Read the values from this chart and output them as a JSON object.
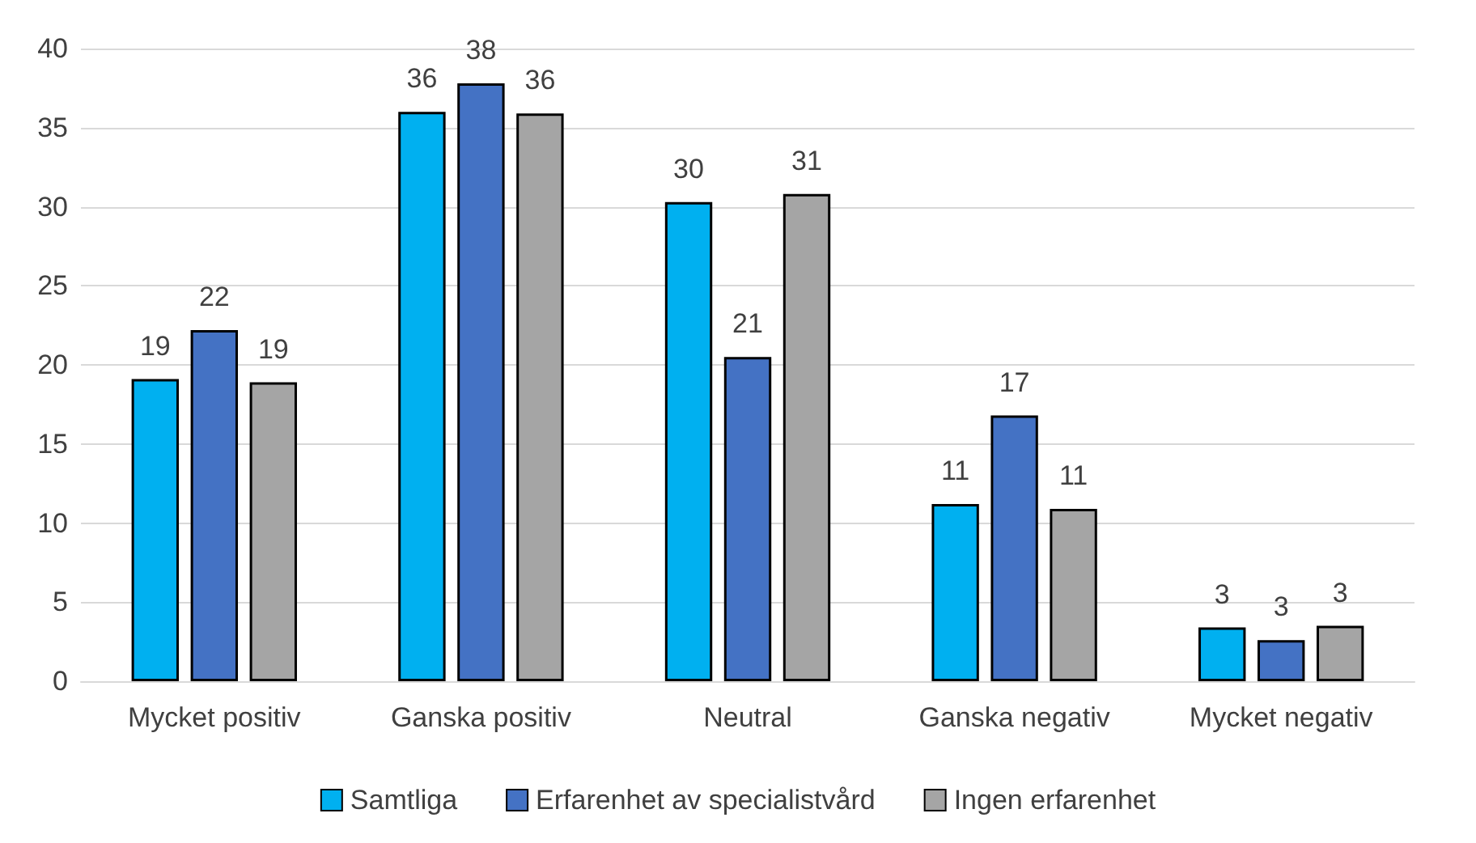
{
  "chart_data": {
    "type": "bar",
    "categories": [
      "Mycket positiv",
      "Ganska positiv",
      "Neutral",
      "Ganska negativ",
      "Mycket negativ"
    ],
    "series": [
      {
        "name": "Samtliga",
        "color": "#00b0f0",
        "values": [
          19.1,
          36.0,
          30.3,
          11.2,
          3.4
        ],
        "value_labels": [
          "19",
          "36",
          "30",
          "11",
          "3"
        ]
      },
      {
        "name": "Erfarenhet av specialistvård",
        "color": "#4472c4",
        "values": [
          22.2,
          37.8,
          20.5,
          16.8,
          2.6
        ],
        "value_labels": [
          "22",
          "38",
          "21",
          "17",
          "3"
        ]
      },
      {
        "name": "Ingen erfarenhet",
        "color": "#a5a5a5",
        "values": [
          18.9,
          35.9,
          30.8,
          10.9,
          3.5
        ],
        "value_labels": [
          "19",
          "36",
          "31",
          "11",
          "3"
        ]
      }
    ],
    "ylim": [
      0,
      40
    ],
    "yticks": [
      0,
      5,
      10,
      15,
      20,
      25,
      30,
      35,
      40
    ],
    "grid": "y",
    "legend": "bottom"
  }
}
